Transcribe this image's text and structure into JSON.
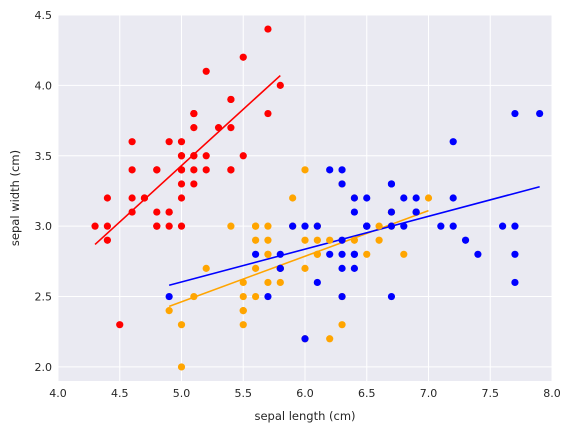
{
  "chart_data": {
    "type": "scatter",
    "title": "",
    "xlabel": "sepal length (cm)",
    "ylabel": "sepal width (cm)",
    "xlim": [
      4.0,
      8.0
    ],
    "ylim": [
      1.9,
      4.5
    ],
    "xticks": [
      "4.0",
      "4.5",
      "5.0",
      "5.5",
      "6.0",
      "6.5",
      "7.0",
      "7.5",
      "8.0"
    ],
    "yticks": [
      "2.0",
      "2.5",
      "3.0",
      "3.5",
      "4.0",
      "4.5"
    ],
    "grid": true,
    "legend": "none",
    "background_color": "#eaeaf2",
    "series": [
      {
        "color": "#ff0000",
        "points": [
          [
            5.1,
            3.5
          ],
          [
            4.9,
            3.0
          ],
          [
            4.7,
            3.2
          ],
          [
            4.6,
            3.1
          ],
          [
            5.0,
            3.6
          ],
          [
            5.4,
            3.9
          ],
          [
            4.6,
            3.4
          ],
          [
            5.0,
            3.4
          ],
          [
            4.4,
            2.9
          ],
          [
            4.9,
            3.1
          ],
          [
            5.4,
            3.7
          ],
          [
            4.8,
            3.4
          ],
          [
            4.8,
            3.0
          ],
          [
            4.3,
            3.0
          ],
          [
            5.8,
            4.0
          ],
          [
            5.7,
            4.4
          ],
          [
            5.4,
            3.9
          ],
          [
            5.1,
            3.5
          ],
          [
            5.7,
            3.8
          ],
          [
            5.1,
            3.8
          ],
          [
            5.4,
            3.4
          ],
          [
            5.1,
            3.7
          ],
          [
            4.6,
            3.6
          ],
          [
            5.1,
            3.3
          ],
          [
            4.8,
            3.4
          ],
          [
            5.0,
            3.0
          ],
          [
            5.0,
            3.4
          ],
          [
            5.2,
            3.5
          ],
          [
            5.2,
            3.4
          ],
          [
            4.7,
            3.2
          ],
          [
            4.8,
            3.1
          ],
          [
            5.4,
            3.4
          ],
          [
            5.2,
            4.1
          ],
          [
            5.5,
            4.2
          ],
          [
            4.9,
            3.1
          ],
          [
            5.0,
            3.2
          ],
          [
            5.5,
            3.5
          ],
          [
            4.9,
            3.6
          ],
          [
            4.4,
            3.0
          ],
          [
            5.1,
            3.4
          ],
          [
            5.0,
            3.5
          ],
          [
            4.5,
            2.3
          ],
          [
            4.4,
            3.2
          ],
          [
            5.0,
            3.5
          ],
          [
            5.1,
            3.8
          ],
          [
            4.8,
            3.0
          ],
          [
            5.1,
            3.8
          ],
          [
            4.6,
            3.2
          ],
          [
            5.3,
            3.7
          ],
          [
            5.0,
            3.3
          ]
        ],
        "fit": [
          [
            4.3,
            2.87
          ],
          [
            5.8,
            4.07
          ]
        ]
      },
      {
        "color": "#ffa500",
        "points": [
          [
            7.0,
            3.2
          ],
          [
            6.4,
            3.2
          ],
          [
            6.9,
            3.1
          ],
          [
            5.5,
            2.3
          ],
          [
            6.5,
            2.8
          ],
          [
            5.7,
            2.8
          ],
          [
            6.3,
            3.3
          ],
          [
            4.9,
            2.4
          ],
          [
            6.6,
            2.9
          ],
          [
            5.2,
            2.7
          ],
          [
            5.0,
            2.0
          ],
          [
            5.9,
            3.0
          ],
          [
            6.0,
            2.2
          ],
          [
            6.1,
            2.9
          ],
          [
            5.6,
            2.9
          ],
          [
            6.7,
            3.1
          ],
          [
            5.6,
            3.0
          ],
          [
            5.8,
            2.7
          ],
          [
            6.2,
            2.2
          ],
          [
            5.6,
            2.5
          ],
          [
            5.9,
            3.2
          ],
          [
            6.1,
            2.8
          ],
          [
            6.3,
            2.5
          ],
          [
            6.1,
            2.8
          ],
          [
            6.4,
            2.9
          ],
          [
            6.6,
            3.0
          ],
          [
            6.8,
            2.8
          ],
          [
            6.7,
            3.0
          ],
          [
            6.0,
            2.9
          ],
          [
            5.7,
            2.6
          ],
          [
            5.5,
            2.4
          ],
          [
            5.5,
            2.4
          ],
          [
            5.8,
            2.7
          ],
          [
            6.0,
            2.7
          ],
          [
            5.4,
            3.0
          ],
          [
            6.0,
            3.4
          ],
          [
            6.7,
            3.1
          ],
          [
            6.3,
            2.3
          ],
          [
            5.6,
            3.0
          ],
          [
            5.5,
            2.5
          ],
          [
            5.5,
            2.6
          ],
          [
            6.1,
            3.0
          ],
          [
            5.8,
            2.6
          ],
          [
            5.0,
            2.3
          ],
          [
            5.6,
            2.7
          ],
          [
            5.7,
            3.0
          ],
          [
            5.7,
            2.9
          ],
          [
            6.2,
            2.9
          ],
          [
            5.1,
            2.5
          ],
          [
            5.7,
            2.8
          ]
        ],
        "fit": [
          [
            4.9,
            2.43
          ],
          [
            7.0,
            3.11
          ]
        ]
      },
      {
        "color": "#0000ff",
        "points": [
          [
            6.3,
            3.3
          ],
          [
            5.8,
            2.7
          ],
          [
            7.1,
            3.0
          ],
          [
            6.3,
            2.9
          ],
          [
            6.5,
            3.0
          ],
          [
            7.6,
            3.0
          ],
          [
            4.9,
            2.5
          ],
          [
            7.3,
            2.9
          ],
          [
            6.7,
            2.5
          ],
          [
            7.2,
            3.6
          ],
          [
            6.5,
            3.2
          ],
          [
            6.4,
            2.7
          ],
          [
            6.8,
            3.0
          ],
          [
            5.7,
            2.5
          ],
          [
            5.8,
            2.8
          ],
          [
            6.4,
            3.2
          ],
          [
            6.5,
            3.0
          ],
          [
            7.7,
            3.8
          ],
          [
            7.7,
            2.6
          ],
          [
            6.0,
            2.2
          ],
          [
            6.9,
            3.2
          ],
          [
            5.6,
            2.8
          ],
          [
            7.7,
            2.8
          ],
          [
            6.3,
            2.7
          ],
          [
            6.7,
            3.3
          ],
          [
            7.2,
            3.2
          ],
          [
            6.2,
            2.8
          ],
          [
            6.1,
            3.0
          ],
          [
            6.4,
            2.8
          ],
          [
            7.2,
            3.0
          ],
          [
            7.4,
            2.8
          ],
          [
            7.9,
            3.8
          ],
          [
            6.4,
            2.8
          ],
          [
            6.3,
            2.8
          ],
          [
            6.1,
            2.6
          ],
          [
            7.7,
            3.0
          ],
          [
            6.3,
            3.4
          ],
          [
            6.4,
            3.1
          ],
          [
            6.0,
            3.0
          ],
          [
            6.9,
            3.1
          ],
          [
            6.7,
            3.1
          ],
          [
            6.9,
            3.1
          ],
          [
            5.8,
            2.7
          ],
          [
            6.8,
            3.2
          ],
          [
            6.7,
            3.3
          ],
          [
            6.7,
            3.0
          ],
          [
            6.3,
            2.5
          ],
          [
            6.5,
            3.0
          ],
          [
            6.2,
            3.4
          ],
          [
            5.9,
            3.0
          ]
        ],
        "fit": [
          [
            4.9,
            2.58
          ],
          [
            7.9,
            3.28
          ]
        ]
      }
    ]
  }
}
